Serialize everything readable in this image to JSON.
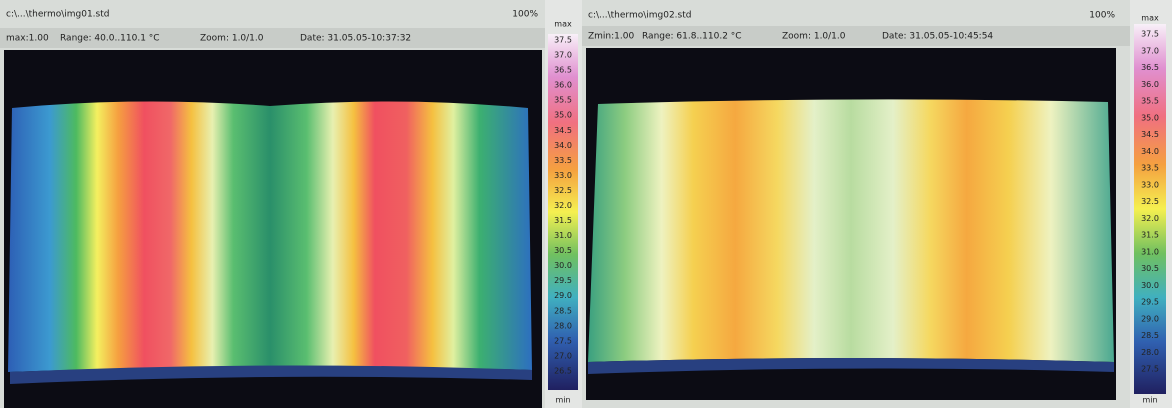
{
  "windows": [
    {
      "title": "c:\\...\\thermo\\img01.std",
      "zoom": "100%",
      "info": {
        "max": "max:1.00",
        "range": "Range: 40.0..110.1 °C",
        "zoomlevel": "Zoom: 1.0/1.0",
        "date": "Date: 31.05.05-10:37:32"
      },
      "scale": {
        "top": "max",
        "labels": [
          "37.5",
          "37.0",
          "36.5",
          "36.0",
          "35.5",
          "35.0",
          "34.5",
          "34.0",
          "33.5",
          "33.0",
          "32.5",
          "32.0",
          "31.5",
          "31.0",
          "30.5",
          "30.0",
          "29.5",
          "29.0",
          "28.5",
          "28.0",
          "27.5",
          "27.0",
          "26.5"
        ],
        "bottom": "min"
      }
    },
    {
      "title": "c:\\...\\thermo\\img02.std",
      "zoom": "100%",
      "info": {
        "max": "Zmin:1.00",
        "range": "Range: 61.8..110.2 °C",
        "zoomlevel": "Zoom: 1.0/1.0",
        "date": "Date: 31.05.05-10:45:54"
      },
      "scale": {
        "top": "max",
        "labels": [
          "37.5",
          "37.0",
          "36.5",
          "36.0",
          "35.5",
          "35.0",
          "34.5",
          "34.0",
          "33.5",
          "33.0",
          "32.5",
          "32.0",
          "31.5",
          "31.0",
          "30.5",
          "30.0",
          "29.5",
          "29.0",
          "28.5",
          "28.0",
          "27.5"
        ],
        "bottom": "min"
      }
    }
  ]
}
